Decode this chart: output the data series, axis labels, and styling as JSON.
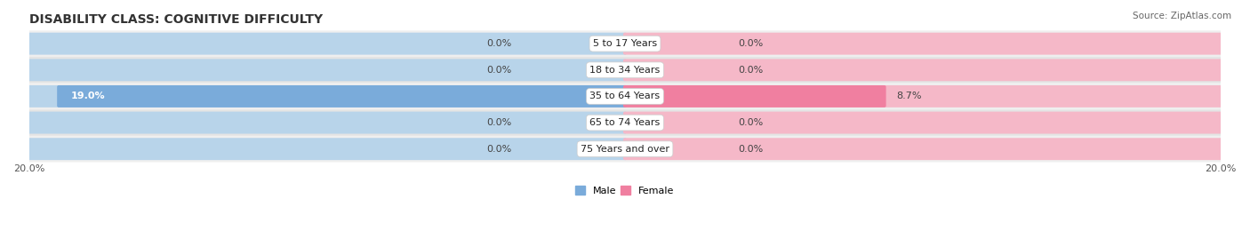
{
  "title": "DISABILITY CLASS: COGNITIVE DIFFICULTY",
  "source": "Source: ZipAtlas.com",
  "categories": [
    "5 to 17 Years",
    "18 to 34 Years",
    "35 to 64 Years",
    "65 to 74 Years",
    "75 Years and over"
  ],
  "male_values": [
    0.0,
    0.0,
    19.0,
    0.0,
    0.0
  ],
  "female_values": [
    0.0,
    0.0,
    8.7,
    0.0,
    0.0
  ],
  "max_value": 20.0,
  "male_color": "#7aabda",
  "female_color": "#f07fa0",
  "male_bg_color": "#b8d4ea",
  "female_bg_color": "#f5b8c8",
  "row_bg_even": "#efefef",
  "row_bg_odd": "#e4e4e4",
  "title_fontsize": 10,
  "label_fontsize": 8,
  "tick_fontsize": 8,
  "source_fontsize": 7.5,
  "legend_fontsize": 8
}
